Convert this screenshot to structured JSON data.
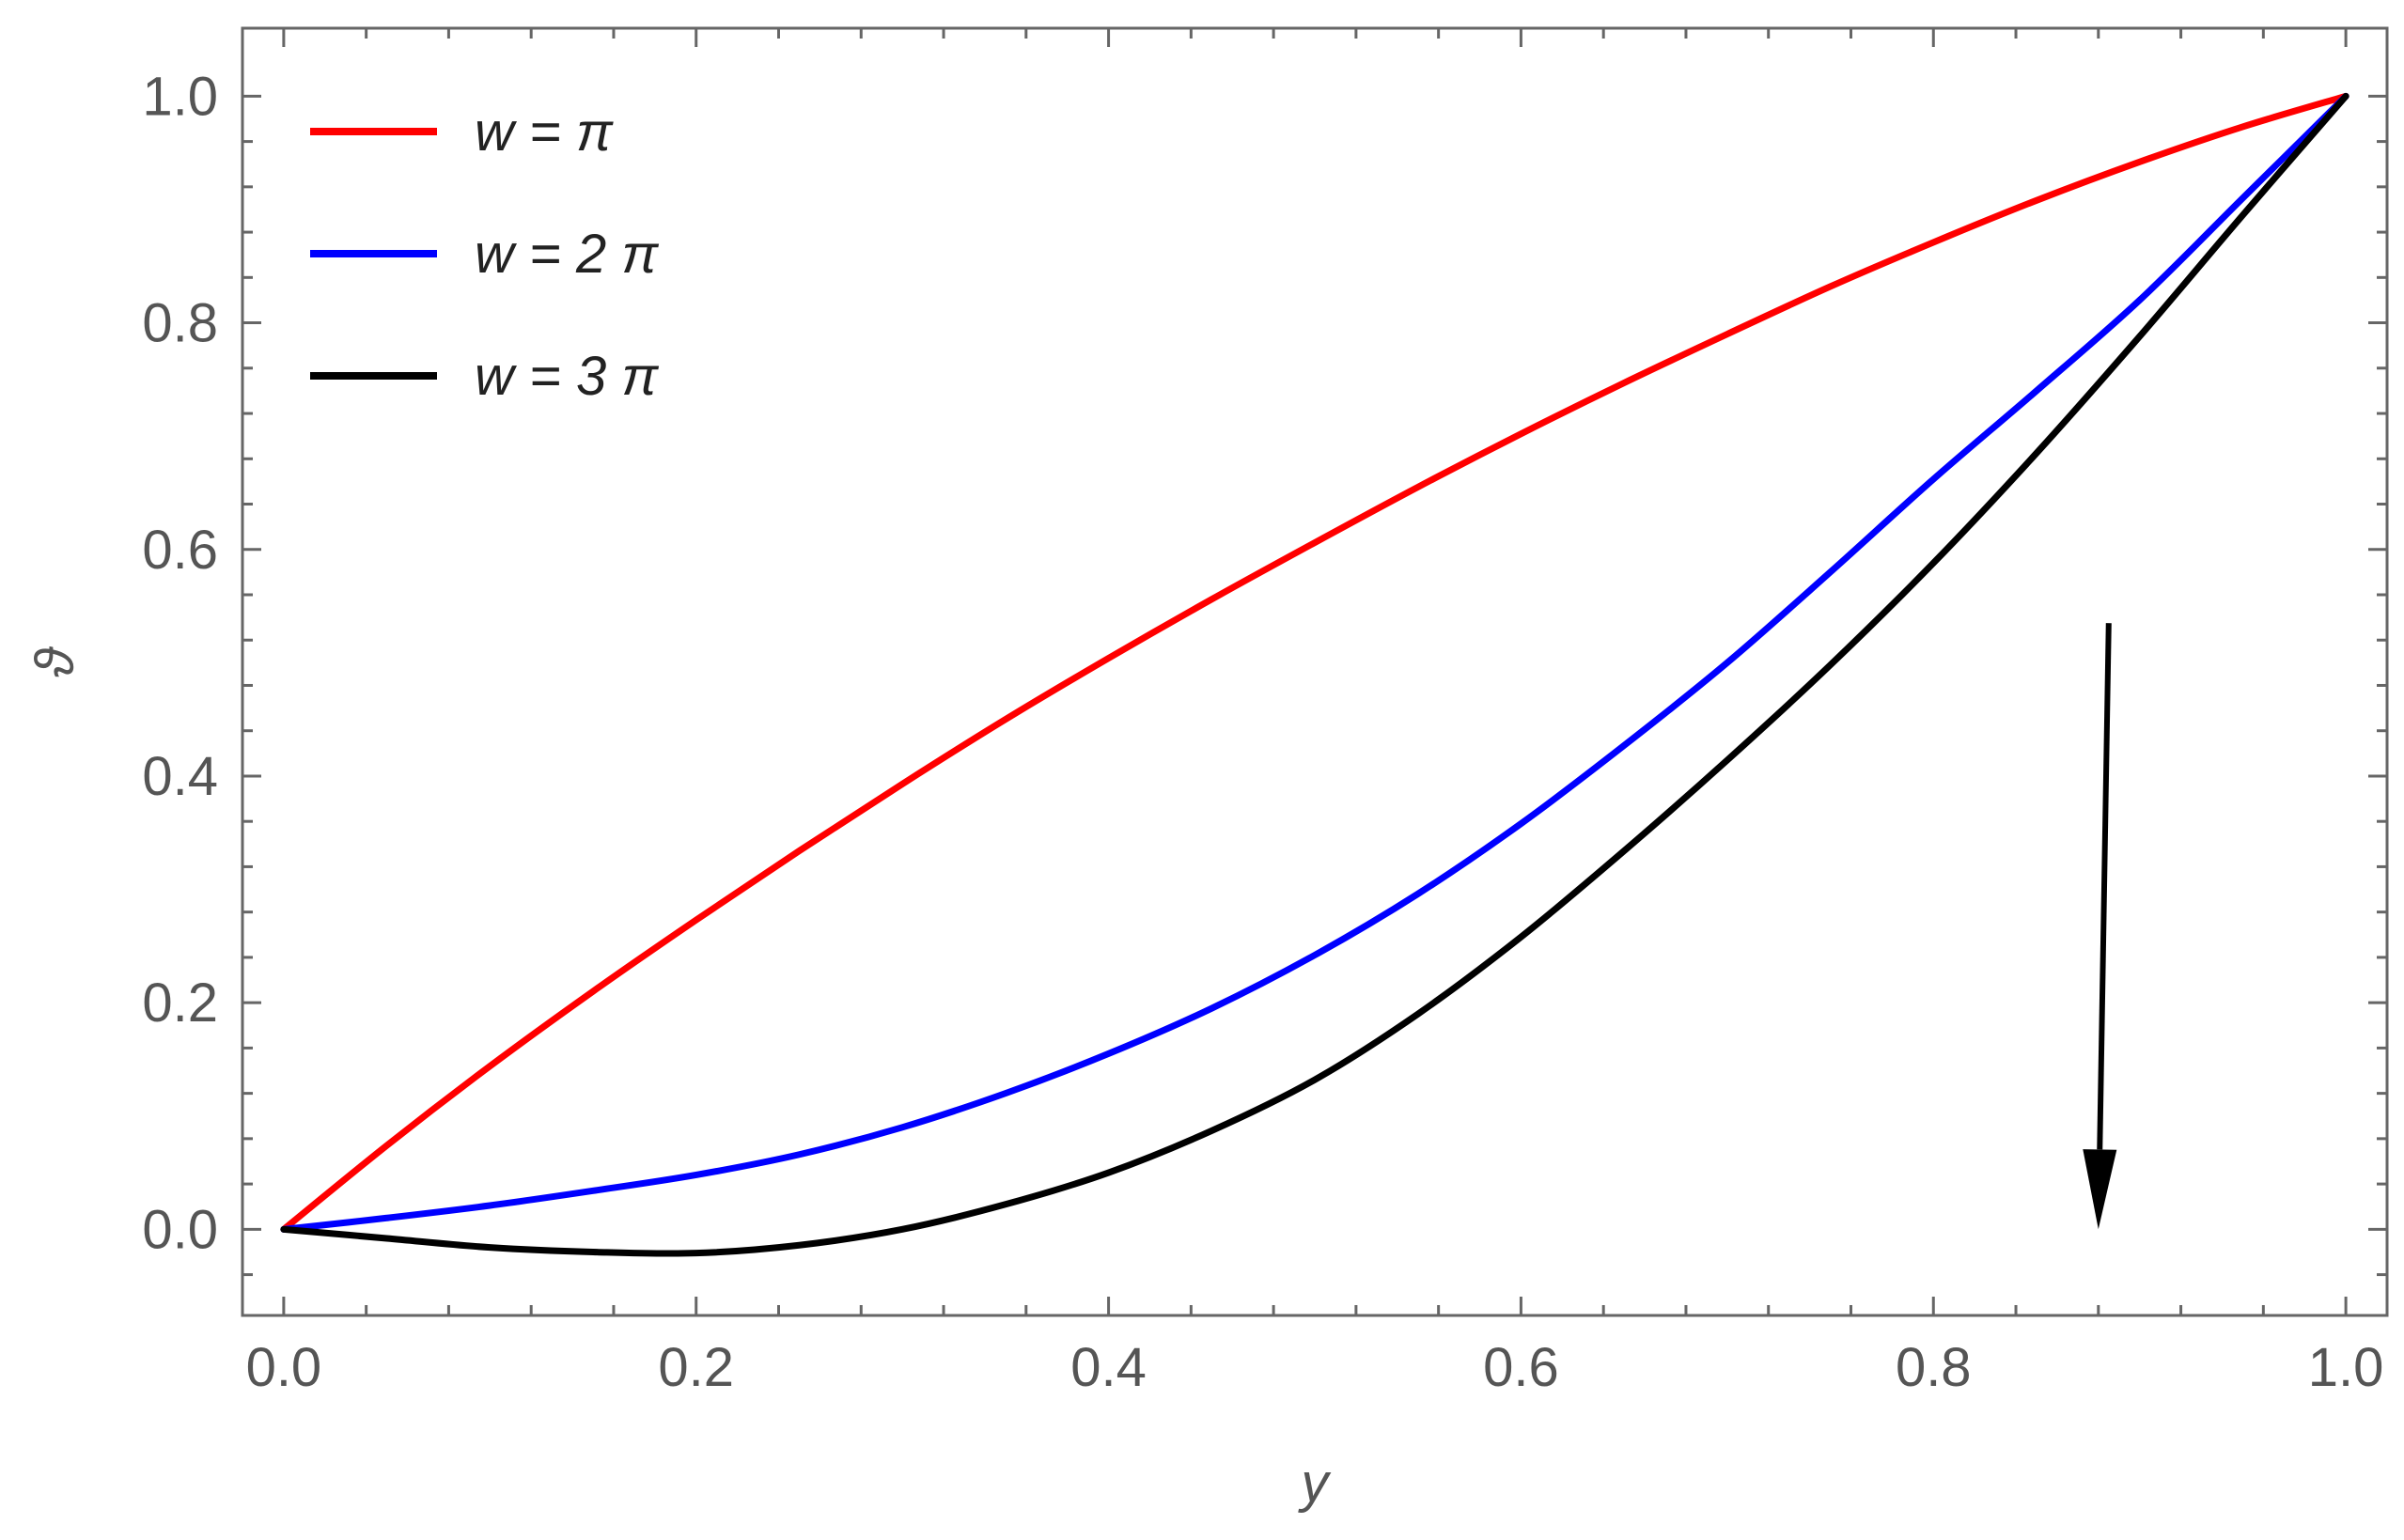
{
  "chart_data": {
    "type": "line",
    "xlabel": "y",
    "ylabel": "ϑ",
    "xlim": [
      -0.02,
      1.02
    ],
    "ylim": [
      -0.076,
      1.06
    ],
    "grid": false,
    "frame": true,
    "legend_position": "top-left",
    "x_ticks": [
      0.0,
      0.2,
      0.4,
      0.6,
      0.8,
      1.0
    ],
    "x_tick_labels": [
      "0.0",
      "0.2",
      "0.4",
      "0.6",
      "0.8",
      "1.0"
    ],
    "y_ticks": [
      0.0,
      0.2,
      0.4,
      0.6,
      0.8,
      1.0
    ],
    "y_tick_labels": [
      "0.0",
      "0.2",
      "0.4",
      "0.6",
      "0.8",
      "1.0"
    ],
    "series": [
      {
        "name": "w = π",
        "color": "#ff0000",
        "x": [
          0.0,
          0.05,
          0.1,
          0.15,
          0.2,
          0.25,
          0.3,
          0.35,
          0.4,
          0.45,
          0.5,
          0.55,
          0.6,
          0.65,
          0.7,
          0.75,
          0.8,
          0.85,
          0.9,
          0.95,
          1.0
        ],
        "y": [
          0.0,
          0.074,
          0.144,
          0.21,
          0.273,
          0.334,
          0.393,
          0.45,
          0.504,
          0.556,
          0.606,
          0.655,
          0.702,
          0.747,
          0.79,
          0.832,
          0.871,
          0.908,
          0.942,
          0.973,
          1.0
        ]
      },
      {
        "name": "w = 2 π",
        "color": "#0000ff",
        "x": [
          0.0,
          0.05,
          0.1,
          0.15,
          0.2,
          0.25,
          0.3,
          0.35,
          0.4,
          0.45,
          0.5,
          0.55,
          0.6,
          0.65,
          0.7,
          0.75,
          0.8,
          0.85,
          0.9,
          0.95,
          1.0
        ],
        "y": [
          0.0,
          0.01,
          0.021,
          0.034,
          0.048,
          0.066,
          0.09,
          0.12,
          0.155,
          0.195,
          0.242,
          0.296,
          0.358,
          0.427,
          0.5,
          0.58,
          0.662,
          0.74,
          0.82,
          0.91,
          1.0
        ]
      },
      {
        "name": "w = 3 π",
        "color": "#000000",
        "x": [
          0.0,
          0.05,
          0.1,
          0.15,
          0.2,
          0.25,
          0.3,
          0.35,
          0.4,
          0.45,
          0.5,
          0.55,
          0.6,
          0.65,
          0.7,
          0.75,
          0.8,
          0.85,
          0.9,
          0.95,
          1.0
        ],
        "y": [
          0.0,
          -0.008,
          -0.016,
          -0.02,
          -0.021,
          -0.014,
          0.0,
          0.022,
          0.05,
          0.087,
          0.132,
          0.19,
          0.258,
          0.334,
          0.414,
          0.498,
          0.588,
          0.685,
          0.788,
          0.895,
          1.0
        ]
      }
    ],
    "annotations": [
      {
        "type": "arrow",
        "direction": "down",
        "from": [
          0.885,
          0.535
        ],
        "to": [
          0.88,
          0.0
        ],
        "color": "#000000"
      }
    ]
  }
}
